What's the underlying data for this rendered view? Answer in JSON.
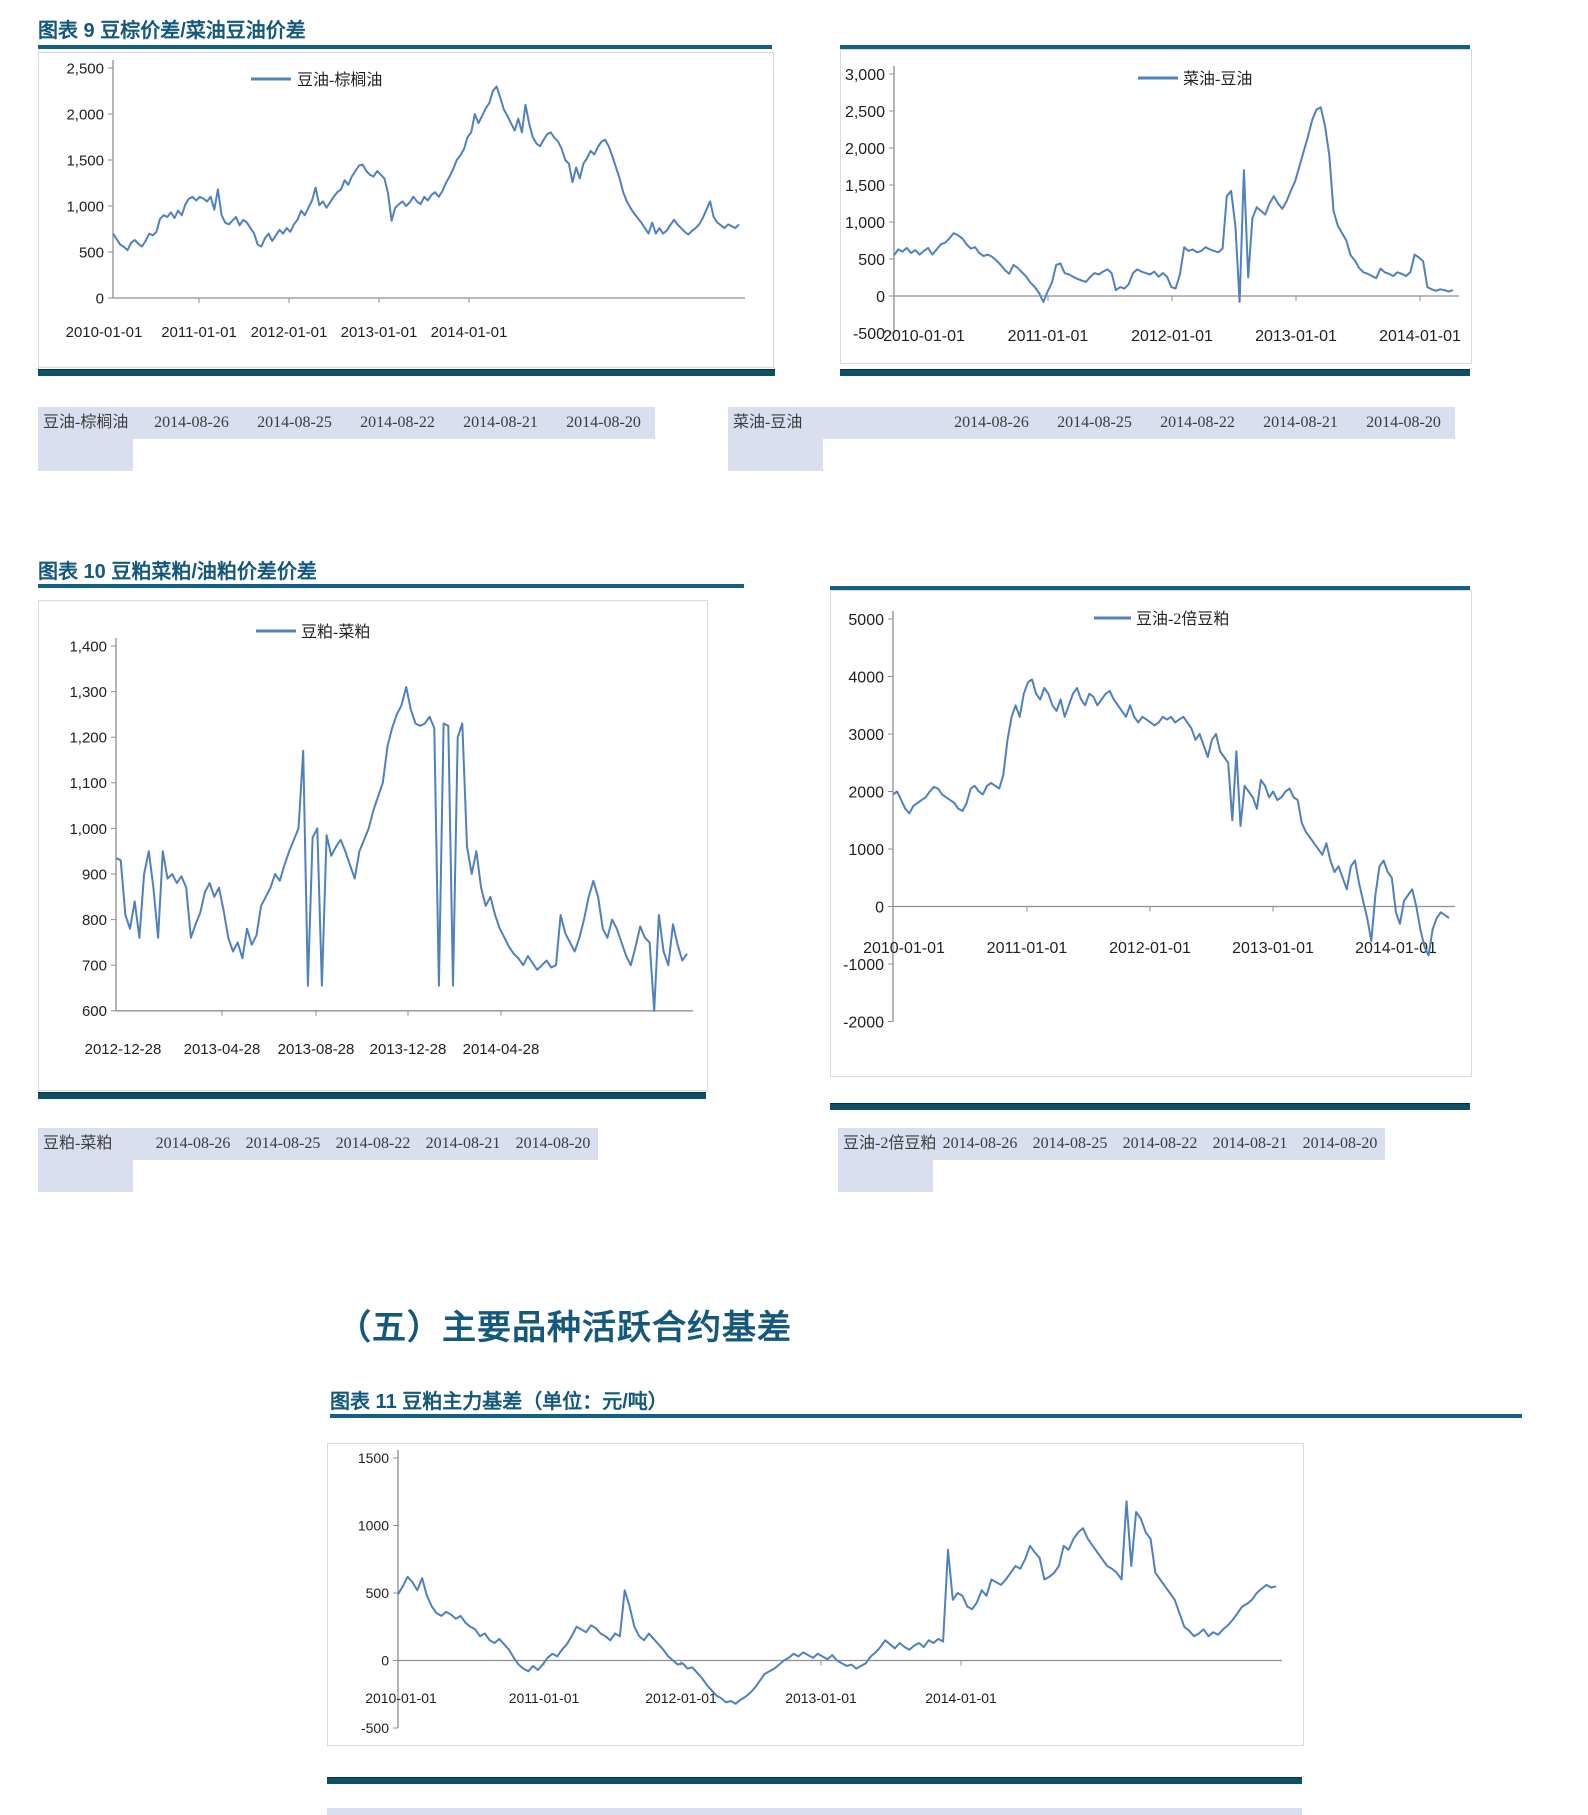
{
  "colors": {
    "title_teal": "#14597B",
    "underline_teal": "#136083",
    "divider_teal": "#0D5068",
    "table_bg": "#D9DFEF",
    "line_blue": "#4F81BD",
    "axis_gray": "#8F8F8F"
  },
  "section_heading": "（五）主要品种活跃合约基差",
  "figures": [
    {
      "title": "图表 9 豆棕价差/菜油豆油价差"
    },
    {
      "title": "图表 10 豆粕菜粕/油粕价差价差"
    },
    {
      "title": "图表 11 豆粕主力基差（单位：元/吨）"
    }
  ],
  "tables": [
    {
      "name": "豆油-棕榈油",
      "dates": [
        "2014-08-26",
        "2014-08-25",
        "2014-08-22",
        "2014-08-21",
        "2014-08-20"
      ]
    },
    {
      "name": "菜油-豆油",
      "dates": [
        "2014-08-26",
        "2014-08-25",
        "2014-08-22",
        "2014-08-21",
        "2014-08-20"
      ]
    },
    {
      "name": "豆粕-菜粕",
      "dates": [
        "2014-08-26",
        "2014-08-25",
        "2014-08-22",
        "2014-08-21",
        "2014-08-20"
      ]
    },
    {
      "name": "豆油-2倍豆粕",
      "dates": [
        "2014-08-26",
        "2014-08-25",
        "2014-08-22",
        "2014-08-21",
        "2014-08-20"
      ]
    }
  ],
  "chart_data": [
    {
      "type": "line",
      "legend": "豆油-棕榈油",
      "y_min": 0,
      "y_max": 2500,
      "y_ticks": [
        "2,500",
        "2,000",
        "1,500",
        "1,000",
        "500",
        "0"
      ],
      "x_ticks": [
        "2010-01-01",
        "2011-01-01",
        "2012-01-01",
        "2013-01-01",
        "2014-01-01"
      ],
      "values": [
        700,
        640,
        580,
        555,
        520,
        600,
        630,
        590,
        560,
        620,
        700,
        680,
        720,
        860,
        900,
        880,
        930,
        870,
        950,
        900,
        1020,
        1080,
        1100,
        1060,
        1100,
        1080,
        1050,
        1100,
        960,
        1180,
        900,
        820,
        800,
        840,
        880,
        790,
        850,
        820,
        760,
        700,
        580,
        560,
        650,
        700,
        620,
        680,
        740,
        700,
        760,
        720,
        800,
        850,
        950,
        900,
        980,
        1060,
        1200,
        1010,
        1050,
        980,
        1040,
        1100,
        1150,
        1180,
        1280,
        1230,
        1320,
        1380,
        1440,
        1450,
        1380,
        1340,
        1320,
        1380,
        1340,
        1300,
        1140,
        840,
        980,
        1020,
        1050,
        1000,
        1040,
        1100,
        1050,
        1020,
        1100,
        1060,
        1120,
        1150,
        1100,
        1160,
        1250,
        1320,
        1400,
        1500,
        1550,
        1620,
        1750,
        1800,
        2000,
        1900,
        1980,
        2060,
        2120,
        2250,
        2300,
        2180,
        2050,
        1980,
        1900,
        1820,
        1950,
        1800,
        2100,
        1900,
        1750,
        1680,
        1650,
        1720,
        1780,
        1800,
        1740,
        1700,
        1620,
        1500,
        1460,
        1260,
        1420,
        1300,
        1460,
        1520,
        1600,
        1560,
        1640,
        1700,
        1720,
        1650,
        1540,
        1420,
        1300,
        1150,
        1050,
        980,
        920,
        870,
        820,
        760,
        700,
        820,
        700,
        760,
        700,
        730,
        790,
        850,
        800,
        760,
        720,
        690,
        730,
        760,
        800,
        870,
        960,
        1050,
        880,
        820,
        790,
        760,
        800,
        780,
        760,
        800
      ]
    },
    {
      "type": "line",
      "legend": "菜油-豆油",
      "y_min": -500,
      "y_max": 3000,
      "y_ticks": [
        "3,000",
        "2,500",
        "2,000",
        "1,500",
        "1,000",
        "500",
        "0",
        "-500"
      ],
      "x_ticks": [
        "2010-01-01",
        "2011-01-01",
        "2012-01-01",
        "2013-01-01",
        "2014-01-01"
      ],
      "values": [
        550,
        630,
        600,
        650,
        580,
        620,
        560,
        610,
        650,
        560,
        630,
        700,
        720,
        780,
        850,
        820,
        780,
        700,
        640,
        660,
        580,
        540,
        560,
        530,
        480,
        420,
        350,
        300,
        420,
        380,
        320,
        260,
        180,
        120,
        40,
        -80,
        60,
        180,
        420,
        440,
        310,
        290,
        260,
        230,
        210,
        190,
        260,
        310,
        290,
        330,
        360,
        310,
        80,
        120,
        100,
        160,
        310,
        360,
        330,
        310,
        290,
        330,
        260,
        310,
        260,
        120,
        100,
        290,
        660,
        610,
        630,
        590,
        610,
        660,
        630,
        610,
        590,
        640,
        1350,
        1420,
        950,
        -80,
        1700,
        250,
        1050,
        1200,
        1150,
        1100,
        1250,
        1350,
        1250,
        1180,
        1280,
        1420,
        1550,
        1750,
        1950,
        2150,
        2380,
        2520,
        2550,
        2300,
        1900,
        1150,
        950,
        850,
        750,
        550,
        480,
        380,
        320,
        300,
        270,
        240,
        370,
        320,
        300,
        270,
        320,
        300,
        270,
        320,
        560,
        520,
        470,
        120,
        90,
        70,
        90,
        80,
        60,
        80
      ]
    },
    {
      "type": "line",
      "legend": "豆粕-菜粕",
      "y_min": 600,
      "y_max": 1400,
      "y_ticks": [
        "1,400",
        "1,300",
        "1,200",
        "1,100",
        "1,000",
        "900",
        "800",
        "700",
        "600"
      ],
      "x_ticks": [
        "2012-12-28",
        "2013-04-28",
        "2013-08-28",
        "2013-12-28",
        "2014-04-28"
      ],
      "values": [
        935,
        930,
        810,
        780,
        840,
        760,
        900,
        950,
        870,
        760,
        950,
        890,
        900,
        880,
        895,
        870,
        760,
        790,
        815,
        860,
        880,
        850,
        870,
        820,
        760,
        730,
        750,
        715,
        780,
        745,
        765,
        830,
        850,
        870,
        900,
        885,
        920,
        950,
        975,
        1000,
        1170,
        655,
        980,
        1000,
        655,
        985,
        940,
        960,
        975,
        950,
        920,
        890,
        950,
        975,
        1000,
        1040,
        1070,
        1100,
        1180,
        1220,
        1250,
        1270,
        1310,
        1260,
        1230,
        1225,
        1230,
        1245,
        1220,
        655,
        1230,
        1225,
        655,
        1200,
        1230,
        960,
        900,
        950,
        870,
        830,
        850,
        810,
        780,
        760,
        740,
        725,
        715,
        700,
        720,
        705,
        690,
        700,
        710,
        695,
        700,
        810,
        770,
        750,
        730,
        760,
        800,
        850,
        885,
        850,
        780,
        760,
        800,
        780,
        750,
        720,
        700,
        740,
        785,
        760,
        750,
        600,
        810,
        730,
        700,
        790,
        745,
        710,
        725
      ]
    },
    {
      "type": "line",
      "legend": "豆油-2倍豆粕",
      "y_min": -2000,
      "y_max": 5000,
      "y_ticks": [
        "5000",
        "4000",
        "3000",
        "2000",
        "1000",
        "0",
        "-1000",
        "-2000"
      ],
      "x_ticks": [
        "2010-01-01",
        "2011-01-01",
        "2012-01-01",
        "2013-01-01",
        "2014-01-01"
      ],
      "values": [
        1950,
        2000,
        1850,
        1700,
        1620,
        1750,
        1800,
        1850,
        1900,
        2000,
        2080,
        2050,
        1950,
        1900,
        1850,
        1800,
        1700,
        1660,
        1800,
        2050,
        2100,
        2000,
        1950,
        2100,
        2150,
        2100,
        2050,
        2300,
        2900,
        3300,
        3500,
        3300,
        3700,
        3900,
        3950,
        3700,
        3600,
        3800,
        3700,
        3500,
        3400,
        3600,
        3300,
        3500,
        3700,
        3800,
        3600,
        3500,
        3700,
        3650,
        3500,
        3600,
        3700,
        3750,
        3600,
        3500,
        3400,
        3300,
        3500,
        3300,
        3200,
        3300,
        3250,
        3200,
        3150,
        3200,
        3300,
        3250,
        3300,
        3200,
        3250,
        3300,
        3200,
        3100,
        2900,
        3000,
        2800,
        2600,
        2900,
        3000,
        2700,
        2600,
        2500,
        1500,
        2700,
        1400,
        2100,
        2000,
        1900,
        1700,
        2200,
        2100,
        1900,
        2000,
        1850,
        1900,
        2000,
        2050,
        1900,
        1850,
        1450,
        1300,
        1200,
        1100,
        1000,
        900,
        1100,
        800,
        600,
        700,
        500,
        300,
        700,
        800,
        400,
        100,
        -200,
        -600,
        200,
        700,
        800,
        600,
        500,
        -100,
        -300,
        100,
        200,
        300,
        0,
        -400,
        -700,
        -850,
        -400,
        -200,
        -100,
        -150,
        -200
      ]
    },
    {
      "type": "line",
      "legend": "",
      "y_min": -500,
      "y_max": 1500,
      "y_ticks": [
        "1500",
        "1000",
        "500",
        "0",
        "-500"
      ],
      "x_ticks": [
        "2010-01-01",
        "2011-01-01",
        "2012-01-01",
        "2013-01-01",
        "2014-01-01"
      ],
      "values": [
        490,
        550,
        620,
        580,
        520,
        610,
        480,
        400,
        350,
        330,
        360,
        340,
        310,
        330,
        280,
        250,
        230,
        180,
        200,
        150,
        130,
        160,
        120,
        80,
        20,
        -30,
        -60,
        -80,
        -40,
        -70,
        -30,
        20,
        50,
        30,
        80,
        120,
        180,
        250,
        230,
        210,
        260,
        240,
        200,
        180,
        150,
        200,
        180,
        520,
        400,
        250,
        180,
        150,
        200,
        160,
        120,
        80,
        30,
        0,
        -30,
        -20,
        -60,
        -50,
        -90,
        -130,
        -180,
        -220,
        -260,
        -280,
        -310,
        -300,
        -320,
        -290,
        -270,
        -240,
        -200,
        -150,
        -100,
        -80,
        -60,
        -30,
        0,
        20,
        50,
        30,
        60,
        40,
        20,
        50,
        30,
        10,
        40,
        0,
        -20,
        -40,
        -30,
        -60,
        -40,
        -20,
        30,
        60,
        100,
        150,
        120,
        90,
        130,
        100,
        80,
        110,
        130,
        100,
        150,
        130,
        160,
        140,
        820,
        450,
        500,
        480,
        400,
        380,
        430,
        520,
        480,
        600,
        580,
        560,
        600,
        650,
        700,
        680,
        750,
        850,
        800,
        760,
        600,
        620,
        650,
        700,
        850,
        820,
        900,
        950,
        980,
        900,
        850,
        800,
        750,
        700,
        680,
        650,
        600,
        1180,
        700,
        1100,
        1050,
        950,
        900,
        650,
        600,
        550,
        500,
        450,
        350,
        250,
        220,
        180,
        200,
        230,
        180,
        210,
        190,
        230,
        260,
        300,
        350,
        400,
        420,
        450,
        500,
        530,
        560,
        540,
        550
      ]
    }
  ]
}
